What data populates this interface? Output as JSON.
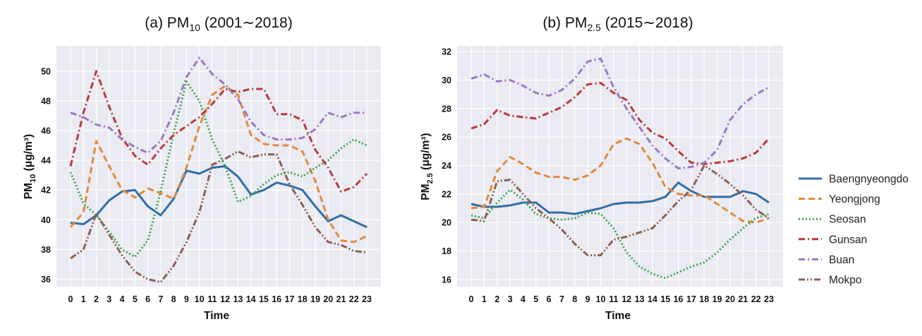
{
  "chart_data": [
    {
      "type": "line",
      "panel_label": "(a) PM",
      "title_subscript": "10",
      "title_suffix": " (2001∼2018)",
      "xlabel": "Time",
      "ylabel_main": "PM",
      "ylabel_sub": "10",
      "ylabel_unit": " (μg/m³)",
      "xlim": [
        0,
        23
      ],
      "ylim": [
        35.5,
        51.7
      ],
      "yticks": [
        36,
        38,
        40,
        42,
        44,
        46,
        48,
        50
      ],
      "xticks": [
        0,
        1,
        2,
        3,
        4,
        5,
        6,
        7,
        8,
        9,
        10,
        11,
        12,
        13,
        14,
        15,
        16,
        17,
        18,
        19,
        20,
        21,
        22,
        23
      ],
      "background": "#eaeaf2",
      "grid": true,
      "series": [
        {
          "name": "Baengnyeongdo",
          "values": [
            39.8,
            39.7,
            40.3,
            41.3,
            41.9,
            42.0,
            40.9,
            40.3,
            41.4,
            43.3,
            43.1,
            43.5,
            43.6,
            42.9,
            41.7,
            42.0,
            42.5,
            42.3,
            42.0,
            40.9,
            39.9,
            40.3,
            39.9,
            39.5
          ]
        },
        {
          "name": "Yeongjong",
          "values": [
            39.5,
            40.5,
            45.3,
            43.6,
            42.0,
            41.5,
            42.1,
            41.8,
            41.4,
            43.5,
            46.3,
            48.4,
            49.0,
            48.4,
            45.7,
            45.1,
            45.0,
            45.0,
            44.6,
            42.6,
            40.0,
            38.6,
            38.5,
            38.9
          ]
        },
        {
          "name": "Seosan",
          "values": [
            43.2,
            41.1,
            40.3,
            39.2,
            38.0,
            37.5,
            38.6,
            41.9,
            45.8,
            49.3,
            48.0,
            45.4,
            43.6,
            41.2,
            41.6,
            42.4,
            43.0,
            43.2,
            42.9,
            43.5,
            44.0,
            44.8,
            45.4,
            45.0
          ]
        },
        {
          "name": "Gunsan",
          "values": [
            43.6,
            47.2,
            50.0,
            47.6,
            45.5,
            44.3,
            43.7,
            44.8,
            45.7,
            46.3,
            46.9,
            47.8,
            48.8,
            48.6,
            48.8,
            48.8,
            47.1,
            47.1,
            46.7,
            44.7,
            43.5,
            41.9,
            42.2,
            43.1
          ]
        },
        {
          "name": "Buan",
          "values": [
            47.2,
            46.9,
            46.4,
            46.2,
            45.4,
            44.9,
            44.5,
            45.3,
            47.2,
            49.6,
            50.9,
            49.8,
            49.1,
            48.1,
            46.6,
            45.7,
            45.4,
            45.4,
            45.5,
            46.1,
            47.2,
            46.9,
            47.2,
            47.2
          ]
        },
        {
          "name": "Mokpo",
          "values": [
            37.4,
            38.0,
            40.4,
            39.0,
            37.6,
            36.5,
            36.0,
            35.8,
            36.9,
            38.5,
            40.5,
            43.7,
            44.1,
            44.6,
            44.2,
            44.4,
            44.4,
            42.4,
            41.0,
            39.5,
            38.5,
            38.3,
            37.9,
            37.8
          ]
        }
      ]
    },
    {
      "type": "line",
      "panel_label": "(b) PM",
      "title_subscript": "2.5",
      "title_suffix": " (2015∼2018)",
      "xlabel": "Time",
      "ylabel_main": "PM",
      "ylabel_sub": "2.5",
      "ylabel_unit": " (μg/m³)",
      "xlim": [
        0,
        23
      ],
      "ylim": [
        15.5,
        32.4
      ],
      "yticks": [
        16,
        18,
        20,
        22,
        24,
        26,
        28,
        30,
        32
      ],
      "xticks": [
        0,
        1,
        2,
        3,
        4,
        5,
        6,
        7,
        8,
        9,
        10,
        11,
        12,
        13,
        14,
        15,
        16,
        17,
        18,
        19,
        20,
        21,
        22,
        23
      ],
      "background": "#eaeaf2",
      "grid": true,
      "series": [
        {
          "name": "Baengnyeongdo",
          "values": [
            21.3,
            21.1,
            21.1,
            21.2,
            21.4,
            21.4,
            20.7,
            20.7,
            20.6,
            20.8,
            21.0,
            21.3,
            21.4,
            21.4,
            21.5,
            21.8,
            22.8,
            22.2,
            21.8,
            21.8,
            21.8,
            22.2,
            22.0,
            21.4
          ]
        },
        {
          "name": "Yeongjong",
          "values": [
            21.0,
            21.1,
            23.6,
            24.6,
            24.1,
            23.5,
            23.2,
            23.2,
            23.0,
            23.3,
            24.0,
            25.5,
            25.9,
            25.5,
            24.2,
            22.5,
            22.0,
            21.9,
            21.9,
            21.3,
            20.7,
            20.1,
            20.0,
            20.3
          ]
        },
        {
          "name": "Seosan",
          "values": [
            20.5,
            20.3,
            21.4,
            22.3,
            21.6,
            20.6,
            20.3,
            20.2,
            20.3,
            20.7,
            20.6,
            19.6,
            17.9,
            16.9,
            16.4,
            16.1,
            16.5,
            16.9,
            17.2,
            17.9,
            18.8,
            19.6,
            20.3,
            20.6
          ]
        },
        {
          "name": "Gunsan",
          "values": [
            26.6,
            26.9,
            27.9,
            27.5,
            27.4,
            27.3,
            27.7,
            28.1,
            28.8,
            29.7,
            29.8,
            29.1,
            28.6,
            27.2,
            26.3,
            25.9,
            25.0,
            24.2,
            24.1,
            24.2,
            24.3,
            24.5,
            24.9,
            25.9
          ]
        },
        {
          "name": "Buan",
          "values": [
            30.1,
            30.4,
            29.9,
            30.0,
            29.6,
            29.1,
            28.9,
            29.3,
            30.1,
            31.3,
            31.5,
            29.5,
            28.0,
            26.7,
            25.4,
            24.5,
            23.8,
            23.9,
            24.2,
            25.1,
            27.2,
            28.3,
            29.0,
            29.5
          ]
        },
        {
          "name": "Mokpo",
          "values": [
            20.2,
            20.1,
            22.9,
            23.0,
            22.0,
            21.0,
            20.3,
            19.5,
            18.5,
            17.7,
            17.7,
            18.8,
            19.0,
            19.3,
            19.6,
            20.5,
            21.5,
            22.3,
            24.0,
            23.4,
            22.7,
            21.9,
            20.9,
            20.3
          ]
        }
      ]
    }
  ],
  "legend": {
    "placement": "right",
    "items": [
      "Baengnyeongdo",
      "Yeongjong",
      "Seosan",
      "Gunsan",
      "Buan",
      "Mokpo"
    ]
  },
  "series_styles": {
    "Baengnyeongdo": {
      "color": "#2f6ea6",
      "dash": "solid"
    },
    "Yeongjong": {
      "color": "#e08a3c",
      "dash": "dashed"
    },
    "Seosan": {
      "color": "#3aa64a",
      "dash": "dotted"
    },
    "Gunsan": {
      "color": "#b83a3a",
      "dash": "dashdot"
    },
    "Buan": {
      "color": "#9a78c2",
      "dash": "dashdot"
    },
    "Mokpo": {
      "color": "#8c5f50",
      "dash": "dashdotdot"
    }
  }
}
